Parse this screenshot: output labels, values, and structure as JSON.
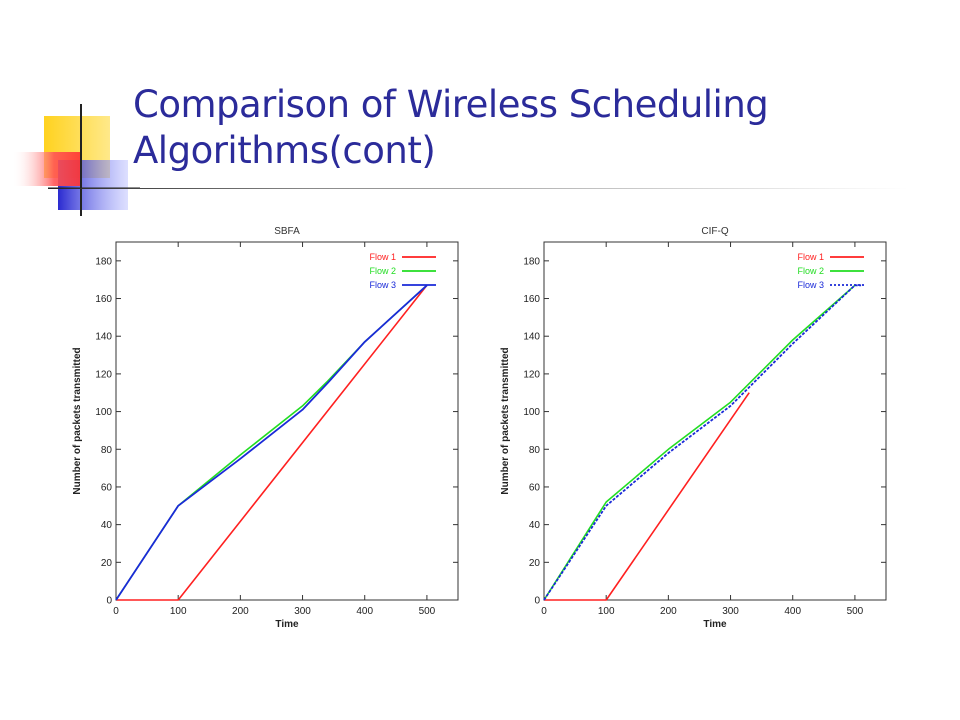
{
  "slide": {
    "title": "Comparison of Wireless Scheduling Algorithms(cont)"
  },
  "colors": {
    "title": "#2b2b9a",
    "flow1": "#ff2020",
    "flow2": "#22dd22",
    "flow3": "#1a2ad8",
    "deco_yellow": "#ffd21f",
    "deco_blue": "#2a2ad0",
    "deco_red": "#ff4444"
  },
  "chart_data": [
    {
      "type": "line",
      "title": "SBFA",
      "xlabel": "Time",
      "ylabel": "Number of packets transmitted",
      "xlim": [
        0,
        550
      ],
      "ylim": [
        0,
        190
      ],
      "xticks": [
        0,
        100,
        200,
        300,
        400,
        500
      ],
      "yticks": [
        0,
        20,
        40,
        60,
        80,
        100,
        120,
        140,
        160,
        180
      ],
      "legend_position": "top-right",
      "series": [
        {
          "name": "Flow 1",
          "color": "#ff2020",
          "dash": "solid",
          "x": [
            0,
            100,
            500
          ],
          "y": [
            0,
            0,
            167
          ]
        },
        {
          "name": "Flow 2",
          "color": "#22dd22",
          "dash": "solid",
          "x": [
            0,
            100,
            200,
            300,
            340,
            400,
            500
          ],
          "y": [
            0,
            50,
            77,
            103,
            116,
            137,
            167
          ]
        },
        {
          "name": "Flow 3",
          "color": "#1a2ad8",
          "dash": "solid",
          "x": [
            0,
            100,
            200,
            300,
            340,
            400,
            500
          ],
          "y": [
            0,
            50,
            75,
            101,
            115,
            137,
            167
          ]
        }
      ]
    },
    {
      "type": "line",
      "title": "CIF-Q",
      "xlabel": "Time",
      "ylabel": "Number of packets transmitted",
      "xlim": [
        0,
        550
      ],
      "ylim": [
        0,
        190
      ],
      "xticks": [
        0,
        100,
        200,
        300,
        400,
        500
      ],
      "yticks": [
        0,
        20,
        40,
        60,
        80,
        100,
        120,
        140,
        160,
        180
      ],
      "legend_position": "top-right",
      "series": [
        {
          "name": "Flow 1",
          "color": "#ff2020",
          "dash": "solid",
          "x": [
            0,
            100,
            330
          ],
          "y": [
            0,
            0,
            110
          ]
        },
        {
          "name": "Flow 2",
          "color": "#22dd22",
          "dash": "solid",
          "x": [
            0,
            100,
            200,
            300,
            400,
            500
          ],
          "y": [
            0,
            52,
            80,
            105,
            138,
            167
          ]
        },
        {
          "name": "Flow 3",
          "color": "#1a2ad8",
          "dash": "dotted",
          "x": [
            0,
            100,
            200,
            300,
            400,
            500,
            510
          ],
          "y": [
            0,
            50,
            78,
            103,
            136,
            167,
            167
          ]
        }
      ]
    }
  ]
}
